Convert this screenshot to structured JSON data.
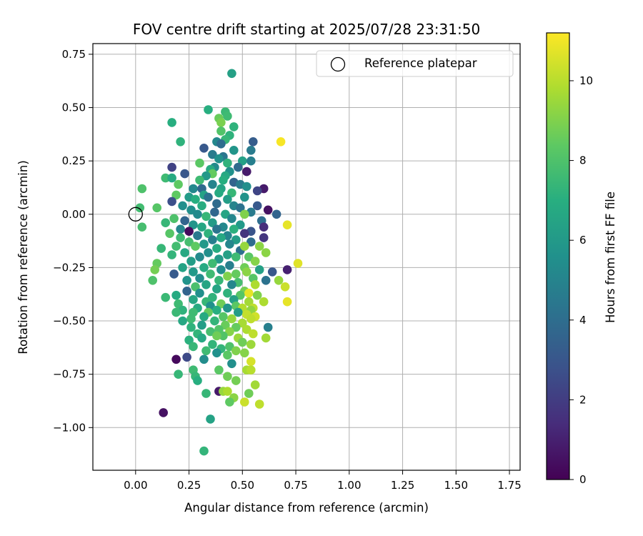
{
  "chart_data": {
    "type": "scatter",
    "title": "FOV centre drift starting at 2025/07/28 23:31:50",
    "xlabel": "Angular distance from reference (arcmin)",
    "ylabel": "Rotation from reference (arcmin)",
    "xlim": [
      -0.2,
      1.8
    ],
    "ylim": [
      -1.2,
      0.8
    ],
    "xticks": [
      0.0,
      0.25,
      0.5,
      0.75,
      1.0,
      1.25,
      1.5,
      1.75
    ],
    "xtick_labels": [
      "0.00",
      "0.25",
      "0.50",
      "0.75",
      "1.00",
      "1.25",
      "1.50",
      "1.75"
    ],
    "yticks": [
      -1.0,
      -0.75,
      -0.5,
      -0.25,
      0.0,
      0.25,
      0.5,
      0.75
    ],
    "ytick_labels": [
      "−1.00",
      "−0.75",
      "−0.50",
      "−0.25",
      "0.00",
      "0.25",
      "0.50",
      "0.75"
    ],
    "grid": true,
    "legend": {
      "placement": "top-right",
      "entries": [
        "Reference platepar"
      ]
    },
    "reference_point": {
      "x": 0.0,
      "y": 0.0
    },
    "colorbar": {
      "label": "Hours from first FF file",
      "range": [
        0,
        11.2
      ],
      "ticks": [
        0,
        2,
        4,
        6,
        8,
        10
      ],
      "tick_labels": [
        "0",
        "2",
        "4",
        "6",
        "8",
        "10"
      ],
      "colormap": "viridis"
    },
    "points": [
      [
        0.45,
        0.66,
        6.3
      ],
      [
        0.34,
        0.49,
        7.0
      ],
      [
        0.42,
        0.48,
        7.5
      ],
      [
        0.43,
        0.46,
        7.6
      ],
      [
        0.39,
        0.45,
        8.6
      ],
      [
        0.4,
        0.43,
        8.9
      ],
      [
        0.46,
        0.41,
        7.2
      ],
      [
        0.17,
        0.43,
        7.0
      ],
      [
        0.4,
        0.39,
        8.1
      ],
      [
        0.44,
        0.37,
        7.2
      ],
      [
        0.42,
        0.35,
        7.4
      ],
      [
        0.38,
        0.34,
        5.2
      ],
      [
        0.21,
        0.34,
        7.2
      ],
      [
        0.55,
        0.34,
        3.3
      ],
      [
        0.68,
        0.34,
        11.1
      ],
      [
        0.4,
        0.33,
        4.0
      ],
      [
        0.54,
        0.3,
        4.6
      ],
      [
        0.32,
        0.31,
        3.1
      ],
      [
        0.46,
        0.3,
        5.8
      ],
      [
        0.36,
        0.28,
        4.6
      ],
      [
        0.41,
        0.27,
        4.4
      ],
      [
        0.43,
        0.24,
        7.2
      ],
      [
        0.39,
        0.26,
        5.6
      ],
      [
        0.5,
        0.25,
        6.3
      ],
      [
        0.54,
        0.25,
        4.8
      ],
      [
        0.3,
        0.24,
        8.3
      ],
      [
        0.17,
        0.22,
        2.2
      ],
      [
        0.48,
        0.22,
        3.9
      ],
      [
        0.37,
        0.22,
        5.3
      ],
      [
        0.35,
        0.21,
        6.8
      ],
      [
        0.44,
        0.2,
        5.6
      ],
      [
        0.52,
        0.2,
        0.8
      ],
      [
        0.23,
        0.19,
        3.0
      ],
      [
        0.36,
        0.19,
        8.5
      ],
      [
        0.42,
        0.18,
        6.7
      ],
      [
        0.33,
        0.18,
        6.0
      ],
      [
        0.14,
        0.17,
        7.6
      ],
      [
        0.17,
        0.17,
        6.8
      ],
      [
        0.3,
        0.16,
        7.6
      ],
      [
        0.41,
        0.16,
        7.0
      ],
      [
        0.46,
        0.15,
        3.6
      ],
      [
        0.2,
        0.14,
        8.4
      ],
      [
        0.36,
        0.14,
        5.0
      ],
      [
        0.49,
        0.14,
        4.6
      ],
      [
        0.52,
        0.13,
        5.5
      ],
      [
        0.4,
        0.12,
        6.5
      ],
      [
        0.03,
        0.12,
        8.0
      ],
      [
        0.27,
        0.12,
        5.2
      ],
      [
        0.31,
        0.12,
        3.8
      ],
      [
        0.6,
        0.12,
        0.8
      ],
      [
        0.57,
        0.11,
        2.3
      ],
      [
        0.39,
        0.1,
        6.8
      ],
      [
        0.45,
        0.1,
        7.4
      ],
      [
        0.32,
        0.09,
        6.4
      ],
      [
        0.19,
        0.09,
        8.4
      ],
      [
        0.25,
        0.08,
        6.1
      ],
      [
        0.51,
        0.08,
        5.7
      ],
      [
        0.34,
        0.08,
        4.2
      ],
      [
        0.43,
        0.07,
        6.2
      ],
      [
        0.28,
        0.07,
        7.0
      ],
      [
        0.17,
        0.06,
        2.7
      ],
      [
        0.38,
        0.05,
        3.9
      ],
      [
        0.46,
        0.04,
        5.0
      ],
      [
        0.22,
        0.04,
        5.5
      ],
      [
        0.31,
        0.04,
        6.9
      ],
      [
        0.57,
        0.04,
        3.1
      ],
      [
        0.02,
        0.03,
        7.7
      ],
      [
        0.1,
        0.03,
        8.2
      ],
      [
        0.49,
        0.03,
        4.2
      ],
      [
        0.26,
        0.02,
        5.5
      ],
      [
        0.62,
        0.02,
        0.5
      ],
      [
        0.37,
        0.01,
        3.7
      ],
      [
        0.54,
        0.01,
        4.6
      ],
      [
        0.66,
        0.0,
        3.6
      ],
      [
        0.29,
        0.0,
        5.3
      ],
      [
        0.42,
        -0.0,
        6.5
      ],
      [
        0.51,
        0.0,
        9.0
      ],
      [
        0.33,
        -0.01,
        7.4
      ],
      [
        0.18,
        -0.02,
        8.0
      ],
      [
        0.45,
        -0.02,
        5.1
      ],
      [
        0.59,
        -0.03,
        4.0
      ],
      [
        0.23,
        -0.03,
        3.6
      ],
      [
        0.36,
        -0.04,
        6.1
      ],
      [
        0.14,
        -0.04,
        7.4
      ],
      [
        0.27,
        -0.05,
        5.8
      ],
      [
        0.49,
        -0.05,
        6.0
      ],
      [
        0.41,
        -0.06,
        5.2
      ],
      [
        0.03,
        -0.06,
        7.8
      ],
      [
        0.31,
        -0.06,
        6.6
      ],
      [
        0.21,
        -0.07,
        5.1
      ],
      [
        0.38,
        -0.07,
        4.3
      ],
      [
        0.6,
        -0.06,
        1.4
      ],
      [
        0.46,
        -0.07,
        7.1
      ],
      [
        0.54,
        -0.08,
        2.9
      ],
      [
        0.25,
        -0.08,
        0.3
      ],
      [
        0.16,
        -0.09,
        8.2
      ],
      [
        0.34,
        -0.09,
        7.2
      ],
      [
        0.43,
        -0.1,
        5.0
      ],
      [
        0.51,
        -0.09,
        1.7
      ],
      [
        0.71,
        -0.05,
        10.8
      ],
      [
        0.29,
        -0.1,
        4.5
      ],
      [
        0.21,
        -0.11,
        7.6
      ],
      [
        0.4,
        -0.11,
        6.7
      ],
      [
        0.47,
        -0.12,
        6.2
      ],
      [
        0.6,
        -0.11,
        1.7
      ],
      [
        0.36,
        -0.12,
        4.8
      ],
      [
        0.25,
        -0.13,
        7.8
      ],
      [
        0.54,
        -0.13,
        4.0
      ],
      [
        0.32,
        -0.14,
        6.0
      ],
      [
        0.44,
        -0.14,
        5.1
      ],
      [
        0.58,
        -0.15,
        9.2
      ],
      [
        0.28,
        -0.15,
        8.4
      ],
      [
        0.19,
        -0.15,
        7.7
      ],
      [
        0.38,
        -0.16,
        6.9
      ],
      [
        0.12,
        -0.16,
        7.4
      ],
      [
        0.49,
        -0.17,
        4.1
      ],
      [
        0.51,
        -0.15,
        9.4
      ],
      [
        0.61,
        -0.18,
        9.2
      ],
      [
        0.34,
        -0.18,
        5.5
      ],
      [
        0.23,
        -0.18,
        6.7
      ],
      [
        0.43,
        -0.19,
        6.3
      ],
      [
        0.17,
        -0.19,
        7.3
      ],
      [
        0.3,
        -0.2,
        5.3
      ],
      [
        0.53,
        -0.2,
        8.3
      ],
      [
        0.39,
        -0.21,
        6.0
      ],
      [
        0.47,
        -0.2,
        7.6
      ],
      [
        0.26,
        -0.22,
        6.2
      ],
      [
        0.56,
        -0.22,
        9.1
      ],
      [
        0.36,
        -0.23,
        7.6
      ],
      [
        0.76,
        -0.23,
        10.7
      ],
      [
        0.44,
        -0.24,
        4.8
      ],
      [
        0.1,
        -0.23,
        8.5
      ],
      [
        0.32,
        -0.25,
        6.8
      ],
      [
        0.51,
        -0.25,
        8.7
      ],
      [
        0.22,
        -0.25,
        6.4
      ],
      [
        0.4,
        -0.26,
        5.5
      ],
      [
        0.58,
        -0.26,
        6.3
      ],
      [
        0.71,
        -0.26,
        1.0
      ],
      [
        0.27,
        -0.27,
        6.0
      ],
      [
        0.47,
        -0.28,
        8.5
      ],
      [
        0.35,
        -0.28,
        7.6
      ],
      [
        0.09,
        -0.26,
        8.8
      ],
      [
        0.52,
        -0.27,
        9.2
      ],
      [
        0.18,
        -0.28,
        3.2
      ],
      [
        0.43,
        -0.29,
        9.0
      ],
      [
        0.3,
        -0.3,
        5.4
      ],
      [
        0.64,
        -0.27,
        3.0
      ],
      [
        0.55,
        -0.3,
        8.2
      ],
      [
        0.39,
        -0.31,
        7.4
      ],
      [
        0.24,
        -0.31,
        5.7
      ],
      [
        0.48,
        -0.32,
        7.8
      ],
      [
        0.08,
        -0.31,
        8.0
      ],
      [
        0.67,
        -0.31,
        9.4
      ],
      [
        0.61,
        -0.31,
        4.2
      ],
      [
        0.33,
        -0.33,
        6.5
      ],
      [
        0.45,
        -0.33,
        5.1
      ],
      [
        0.56,
        -0.33,
        9.8
      ],
      [
        0.28,
        -0.34,
        7.9
      ],
      [
        0.7,
        -0.34,
        10.3
      ],
      [
        0.38,
        -0.35,
        6.5
      ],
      [
        0.51,
        -0.36,
        8.8
      ],
      [
        0.24,
        -0.36,
        3.6
      ],
      [
        0.43,
        -0.37,
        7.2
      ],
      [
        0.53,
        -0.37,
        10.8
      ],
      [
        0.3,
        -0.37,
        5.5
      ],
      [
        0.19,
        -0.38,
        6.8
      ],
      [
        0.49,
        -0.38,
        8.2
      ],
      [
        0.36,
        -0.39,
        7.2
      ],
      [
        0.57,
        -0.38,
        9.0
      ],
      [
        0.14,
        -0.39,
        7.5
      ],
      [
        0.46,
        -0.4,
        6.3
      ],
      [
        0.27,
        -0.4,
        6.6
      ],
      [
        0.33,
        -0.41,
        7.4
      ],
      [
        0.53,
        -0.41,
        9.6
      ],
      [
        0.71,
        -0.41,
        10.8
      ],
      [
        0.6,
        -0.41,
        9.8
      ],
      [
        0.4,
        -0.42,
        8.7
      ],
      [
        0.2,
        -0.42,
        7.6
      ],
      [
        0.47,
        -0.43,
        8.3
      ],
      [
        0.35,
        -0.43,
        5.6
      ],
      [
        0.5,
        -0.44,
        9.9
      ],
      [
        0.55,
        -0.44,
        10.1
      ],
      [
        0.29,
        -0.44,
        6.8
      ],
      [
        0.43,
        -0.44,
        5.8
      ],
      [
        0.22,
        -0.45,
        7.2
      ],
      [
        0.38,
        -0.45,
        7.0
      ],
      [
        0.54,
        -0.45,
        9.3
      ],
      [
        0.34,
        -0.46,
        8.5
      ],
      [
        0.19,
        -0.46,
        7.5
      ],
      [
        0.48,
        -0.46,
        6.2
      ],
      [
        0.27,
        -0.46,
        7.6
      ],
      [
        0.52,
        -0.47,
        10.2
      ],
      [
        0.41,
        -0.48,
        8.2
      ],
      [
        0.56,
        -0.48,
        10.4
      ],
      [
        0.32,
        -0.48,
        6.8
      ],
      [
        0.45,
        -0.49,
        9.4
      ],
      [
        0.54,
        -0.49,
        10.1
      ],
      [
        0.26,
        -0.49,
        7.6
      ],
      [
        0.37,
        -0.5,
        7.3
      ],
      [
        0.22,
        -0.5,
        6.7
      ],
      [
        0.5,
        -0.51,
        9.7
      ],
      [
        0.42,
        -0.52,
        8.6
      ],
      [
        0.31,
        -0.52,
        6.2
      ],
      [
        0.62,
        -0.53,
        4.8
      ],
      [
        0.47,
        -0.53,
        8.5
      ],
      [
        0.26,
        -0.53,
        7.2
      ],
      [
        0.39,
        -0.54,
        8.1
      ],
      [
        0.52,
        -0.54,
        9.8
      ],
      [
        0.35,
        -0.55,
        7.8
      ],
      [
        0.44,
        -0.55,
        9.1
      ],
      [
        0.55,
        -0.56,
        10.1
      ],
      [
        0.29,
        -0.56,
        7.3
      ],
      [
        0.41,
        -0.57,
        8.1
      ],
      [
        0.48,
        -0.58,
        9.5
      ],
      [
        0.38,
        -0.57,
        8.7
      ],
      [
        0.61,
        -0.58,
        9.6
      ],
      [
        0.31,
        -0.58,
        6.7
      ],
      [
        0.25,
        -0.59,
        7.1
      ],
      [
        0.5,
        -0.6,
        8.7
      ],
      [
        0.36,
        -0.61,
        7.3
      ],
      [
        0.44,
        -0.62,
        8.0
      ],
      [
        0.54,
        -0.61,
        9.5
      ],
      [
        0.27,
        -0.62,
        7.4
      ],
      [
        0.4,
        -0.63,
        7.3
      ],
      [
        0.47,
        -0.64,
        9.0
      ],
      [
        0.33,
        -0.64,
        7.6
      ],
      [
        0.51,
        -0.65,
        9.1
      ],
      [
        0.38,
        -0.65,
        5.6
      ],
      [
        0.24,
        -0.67,
        2.5
      ],
      [
        0.19,
        -0.68,
        0.3
      ],
      [
        0.43,
        -0.66,
        8.3
      ],
      [
        0.32,
        -0.68,
        5.4
      ],
      [
        0.54,
        -0.69,
        10.5
      ],
      [
        0.45,
        -0.7,
        5.5
      ],
      [
        0.39,
        -0.73,
        8.3
      ],
      [
        0.52,
        -0.73,
        9.7
      ],
      [
        0.27,
        -0.73,
        7.6
      ],
      [
        0.54,
        -0.73,
        10.0
      ],
      [
        0.2,
        -0.75,
        7.4
      ],
      [
        0.43,
        -0.76,
        8.7
      ],
      [
        0.28,
        -0.76,
        7.4
      ],
      [
        0.47,
        -0.78,
        8.8
      ],
      [
        0.29,
        -0.78,
        7.0
      ],
      [
        0.56,
        -0.8,
        9.6
      ],
      [
        0.39,
        -0.83,
        0.8
      ],
      [
        0.41,
        -0.83,
        9.4
      ],
      [
        0.43,
        -0.83,
        9.8
      ],
      [
        0.53,
        -0.84,
        8.7
      ],
      [
        0.33,
        -0.84,
        7.4
      ],
      [
        0.46,
        -0.86,
        9.2
      ],
      [
        0.44,
        -0.88,
        8.4
      ],
      [
        0.51,
        -0.88,
        10.3
      ],
      [
        0.58,
        -0.89,
        10.1
      ],
      [
        0.13,
        -0.93,
        0.5
      ],
      [
        0.35,
        -0.96,
        6.4
      ],
      [
        0.32,
        -1.11,
        7.3
      ]
    ]
  }
}
